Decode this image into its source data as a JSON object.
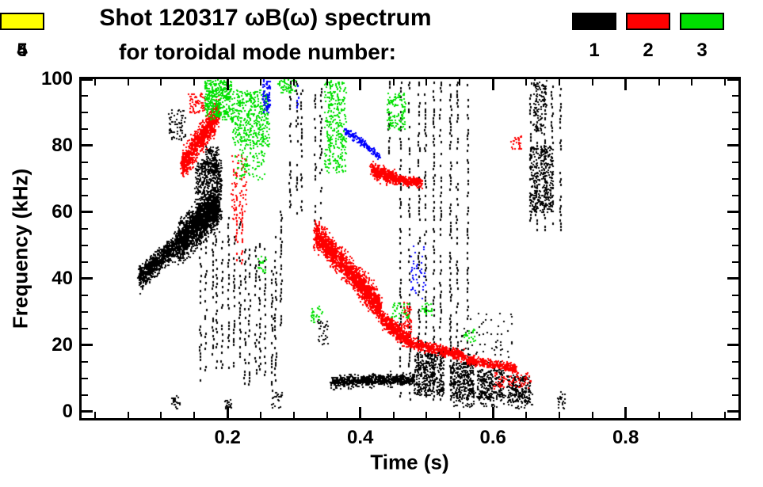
{
  "title": {
    "line1": "Shot 120317 ωB(ω) spectrum",
    "line2": "for toroidal mode number:"
  },
  "legend": {
    "items": [
      {
        "label": "1",
        "color": "#000000"
      },
      {
        "label": "2",
        "color": "#ff0000"
      },
      {
        "label": "3",
        "color": "#00e000"
      },
      {
        "label": "4",
        "color": "#0000ff"
      },
      {
        "label": "5",
        "color": "#ffff00"
      }
    ]
  },
  "chart_data": {
    "type": "scatter",
    "title": "Shot 120317 ωB(ω) spectrum for toroidal mode number",
    "xlabel": "Time (s)",
    "ylabel": "Frequency (kHz)",
    "xlim": [
      -0.02,
      0.97
    ],
    "ylim": [
      -2,
      100
    ],
    "x_major": [
      {
        "v": 0.2,
        "label": "0.2"
      },
      {
        "v": 0.4,
        "label": "0.4"
      },
      {
        "v": 0.6,
        "label": "0.6"
      },
      {
        "v": 0.8,
        "label": "0.8"
      }
    ],
    "y_major": [
      {
        "v": 0,
        "label": "0"
      },
      {
        "v": 20,
        "label": "20"
      },
      {
        "v": 40,
        "label": "40"
      },
      {
        "v": 60,
        "label": "60"
      },
      {
        "v": 80,
        "label": "80"
      },
      {
        "v": 100,
        "label": "100"
      }
    ],
    "x_minor_step": 0.05,
    "y_minor_step": 5,
    "grid": false,
    "legend_position": "top-right",
    "series": [
      {
        "name": "1",
        "color": "#000000",
        "clusters": [
          {
            "kind": "band",
            "from": [
              0.065,
              40
            ],
            "to": [
              0.125,
              51
            ],
            "spread": 5,
            "n": 800
          },
          {
            "kind": "band",
            "from": [
              0.125,
              51
            ],
            "to": [
              0.185,
              62
            ],
            "spread": 8,
            "n": 1600
          },
          {
            "kind": "blob",
            "t": [
              0.15,
              0.19
            ],
            "f": [
              58,
              76
            ],
            "n": 600
          },
          {
            "kind": "blob",
            "t": [
              0.165,
              0.185
            ],
            "f": [
              72,
              80
            ],
            "n": 150
          },
          {
            "kind": "vstreaks",
            "t": [
              0.155,
              0.285
            ],
            "lines": 16,
            "f": [
              6,
              62
            ],
            "vary": true
          },
          {
            "kind": "blob",
            "t": [
              0.11,
              0.135
            ],
            "f": [
              82,
              91
            ],
            "n": 70
          },
          {
            "kind": "vstreaks",
            "t": [
              0.29,
              0.315
            ],
            "lines": 3,
            "f": [
              60,
              100
            ]
          },
          {
            "kind": "vstreaks",
            "t": [
              0.325,
              0.345
            ],
            "lines": 2,
            "f": [
              55,
              100
            ]
          },
          {
            "kind": "vstreaks",
            "t": [
              0.438,
              0.452
            ],
            "lines": 1,
            "f": [
              78,
              100
            ]
          },
          {
            "kind": "vstreaks",
            "t": [
              0.455,
              0.565
            ],
            "lines": 9,
            "f": [
              4,
              100
            ]
          },
          {
            "kind": "band",
            "from": [
              0.355,
              9
            ],
            "to": [
              0.48,
              10
            ],
            "spread": 2.5,
            "n": 700
          },
          {
            "kind": "blob",
            "t": [
              0.48,
              0.525
            ],
            "f": [
              5,
              18
            ],
            "n": 420
          },
          {
            "kind": "blob",
            "t": [
              0.535,
              0.57
            ],
            "f": [
              4,
              15
            ],
            "n": 320
          },
          {
            "kind": "blob",
            "t": [
              0.575,
              0.615
            ],
            "f": [
              4,
              13
            ],
            "n": 280
          },
          {
            "kind": "blob",
            "t": [
              0.62,
              0.655
            ],
            "f": [
              3,
              11
            ],
            "n": 230
          },
          {
            "kind": "vstreaks",
            "t": [
              0.65,
              0.705
            ],
            "lines": 5,
            "f": [
              55,
              100
            ]
          },
          {
            "kind": "blob",
            "t": [
              0.655,
              0.69
            ],
            "f": [
              60,
              80
            ],
            "n": 380
          },
          {
            "kind": "blob",
            "t": [
              0.66,
              0.68
            ],
            "f": [
              84,
              100
            ],
            "n": 130
          },
          {
            "kind": "blob",
            "t": [
              0.115,
              0.128
            ],
            "f": [
              1,
              5
            ],
            "n": 25
          },
          {
            "kind": "blob",
            "t": [
              0.195,
              0.206
            ],
            "f": [
              1,
              4
            ],
            "n": 18
          },
          {
            "kind": "blob",
            "t": [
              0.265,
              0.282
            ],
            "f": [
              1,
              6
            ],
            "n": 28
          },
          {
            "kind": "blob",
            "t": [
              0.54,
              0.66
            ],
            "f": [
              1,
              6
            ],
            "n": 110
          },
          {
            "kind": "blob",
            "t": [
              0.695,
              0.708
            ],
            "f": [
              1,
              6
            ],
            "n": 22
          },
          {
            "kind": "blob",
            "t": [
              0.55,
              0.63
            ],
            "f": [
              14,
              30
            ],
            "n": 70
          },
          {
            "kind": "blob",
            "t": [
              0.335,
              0.35
            ],
            "f": [
              20,
              28
            ],
            "n": 40
          }
        ]
      },
      {
        "name": "2",
        "color": "#ff0000",
        "clusters": [
          {
            "kind": "band",
            "from": [
              0.13,
              74
            ],
            "to": [
              0.185,
              90
            ],
            "spread": 6,
            "n": 900
          },
          {
            "kind": "blob",
            "t": [
              0.14,
              0.165
            ],
            "f": [
              90,
              96
            ],
            "n": 70
          },
          {
            "kind": "blob",
            "t": [
              0.205,
              0.228
            ],
            "f": [
              58,
              78
            ],
            "n": 90
          },
          {
            "kind": "vstreaks",
            "t": [
              0.208,
              0.225
            ],
            "lines": 2,
            "f": [
              45,
              72
            ]
          },
          {
            "kind": "band",
            "from": [
              0.33,
              54
            ],
            "to": [
              0.385,
              42
            ],
            "spread": 6,
            "n": 800
          },
          {
            "kind": "band",
            "from": [
              0.385,
              42
            ],
            "to": [
              0.43,
              31
            ],
            "spread": 6,
            "n": 800
          },
          {
            "kind": "band",
            "from": [
              0.43,
              28
            ],
            "to": [
              0.47,
              22
            ],
            "spread": 3.5,
            "n": 400
          },
          {
            "kind": "band",
            "from": [
              0.47,
              21
            ],
            "to": [
              0.555,
              17
            ],
            "spread": 2.2,
            "n": 500
          },
          {
            "kind": "band",
            "from": [
              0.555,
              16
            ],
            "to": [
              0.635,
              13
            ],
            "spread": 1.8,
            "n": 380
          },
          {
            "kind": "band",
            "from": [
              0.415,
              73
            ],
            "to": [
              0.455,
              70
            ],
            "spread": 3,
            "n": 420
          },
          {
            "kind": "band",
            "from": [
              0.455,
              70
            ],
            "to": [
              0.492,
              69
            ],
            "spread": 2,
            "n": 260
          },
          {
            "kind": "blob",
            "t": [
              0.464,
              0.476
            ],
            "f": [
              22,
              33
            ],
            "n": 90
          },
          {
            "kind": "blob",
            "t": [
              0.6,
              0.657
            ],
            "f": [
              7,
              12
            ],
            "n": 90
          },
          {
            "kind": "blob",
            "t": [
              0.625,
              0.642
            ],
            "f": [
              79,
              83
            ],
            "n": 28
          }
        ]
      },
      {
        "name": "3",
        "color": "#00e000",
        "clusters": [
          {
            "kind": "blob",
            "t": [
              0.165,
              0.205
            ],
            "f": [
              88,
              100
            ],
            "n": 420
          },
          {
            "kind": "blob",
            "t": [
              0.205,
              0.262
            ],
            "f": [
              80,
              97
            ],
            "n": 480
          },
          {
            "kind": "blob",
            "t": [
              0.21,
              0.255
            ],
            "f": [
              70,
              80
            ],
            "n": 90
          },
          {
            "kind": "blob",
            "t": [
              0.345,
              0.378
            ],
            "f": [
              72,
              100
            ],
            "n": 300
          },
          {
            "kind": "vstreaks",
            "t": [
              0.35,
              0.372
            ],
            "lines": 2,
            "f": [
              74,
              100
            ]
          },
          {
            "kind": "blob",
            "t": [
              0.44,
              0.467
            ],
            "f": [
              85,
              96
            ],
            "n": 130
          },
          {
            "kind": "blob",
            "t": [
              0.275,
              0.302
            ],
            "f": [
              96,
              100
            ],
            "n": 60
          },
          {
            "kind": "blob",
            "t": [
              0.245,
              0.257
            ],
            "f": [
              42,
              47
            ],
            "n": 26
          },
          {
            "kind": "blob",
            "t": [
              0.325,
              0.342
            ],
            "f": [
              27,
              32
            ],
            "n": 30
          },
          {
            "kind": "blob",
            "t": [
              0.445,
              0.472
            ],
            "f": [
              28,
              33
            ],
            "n": 40
          },
          {
            "kind": "blob",
            "t": [
              0.49,
              0.507
            ],
            "f": [
              29,
              33
            ],
            "n": 28
          },
          {
            "kind": "blob",
            "t": [
              0.555,
              0.572
            ],
            "f": [
              21,
              25
            ],
            "n": 24
          }
        ]
      },
      {
        "name": "4",
        "color": "#0000ff",
        "clusters": [
          {
            "kind": "blob",
            "t": [
              0.252,
              0.263
            ],
            "f": [
              90,
              100
            ],
            "n": 90
          },
          {
            "kind": "vstreaks",
            "t": [
              0.3,
              0.307
            ],
            "lines": 1,
            "f": [
              92,
              100
            ]
          },
          {
            "kind": "band",
            "from": [
              0.375,
              85
            ],
            "to": [
              0.428,
              77
            ],
            "spread": 1.6,
            "n": 160
          },
          {
            "kind": "blob",
            "t": [
              0.475,
              0.497
            ],
            "f": [
              34,
              50
            ],
            "n": 45
          }
        ]
      },
      {
        "name": "5",
        "color": "#ffff00",
        "clusters": []
      }
    ]
  }
}
